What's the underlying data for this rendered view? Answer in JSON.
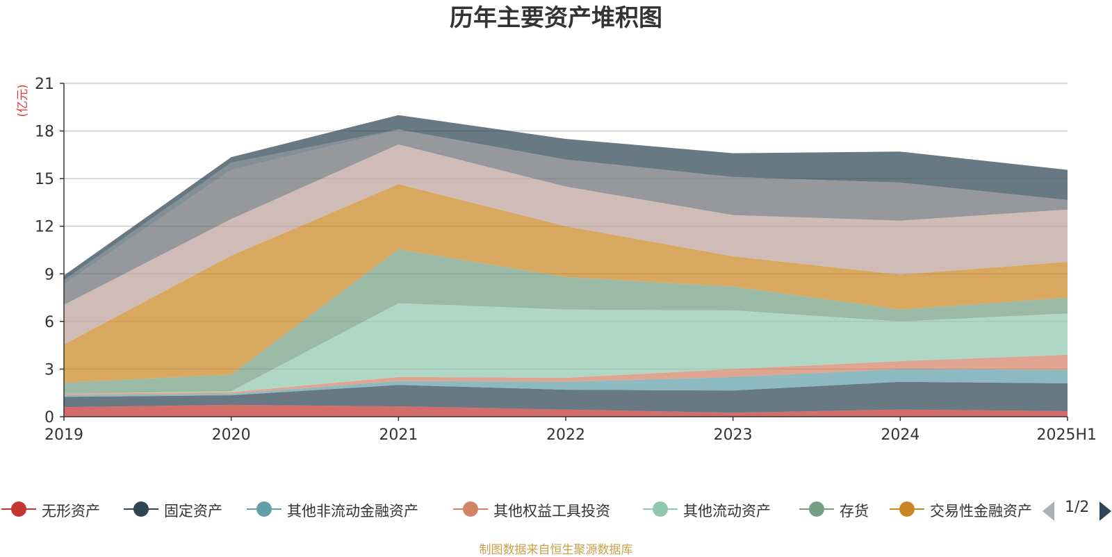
{
  "chart_data": {
    "type": "area",
    "stacked": true,
    "title": "历年主要资产堆积图",
    "ylabel": "(亿元)",
    "xlabel": "",
    "categories": [
      "2019",
      "2020",
      "2021",
      "2022",
      "2023",
      "2024",
      "2025H1"
    ],
    "ylim": [
      0,
      21
    ],
    "yticks": [
      0,
      3,
      6,
      9,
      12,
      15,
      18,
      21
    ],
    "grid": true,
    "legend_position": "bottom",
    "series": [
      {
        "name": "无形资产",
        "color": "#c23531",
        "values": [
          0.6,
          0.75,
          0.65,
          0.45,
          0.25,
          0.45,
          0.35
        ]
      },
      {
        "name": "固定资产",
        "color": "#2f4554",
        "values": [
          0.65,
          0.6,
          1.35,
          1.25,
          1.4,
          1.75,
          1.75
        ]
      },
      {
        "name": "其他非流动金融资产",
        "color": "#61a0a8",
        "values": [
          0.1,
          0.1,
          0.25,
          0.5,
          0.85,
          0.8,
          0.85
        ]
      },
      {
        "name": "其他权益工具投资",
        "color": "#d48265",
        "values": [
          0.1,
          0.1,
          0.25,
          0.25,
          0.5,
          0.5,
          0.95
        ]
      },
      {
        "name": "其他流动资产",
        "color": "#91c7ae",
        "values": [
          0.0,
          0.05,
          4.65,
          4.3,
          3.7,
          2.5,
          2.6
        ]
      },
      {
        "name": "存货",
        "color": "#749f83",
        "values": [
          0.7,
          1.05,
          3.4,
          2.05,
          1.5,
          0.75,
          1.0
        ]
      },
      {
        "name": "交易性金融资产",
        "color": "#ca8622",
        "values": [
          2.4,
          7.5,
          4.1,
          3.2,
          1.9,
          2.2,
          2.25
        ]
      },
      {
        "name": "",
        "color": "#bda29a",
        "values": [
          2.5,
          2.3,
          2.5,
          2.5,
          2.6,
          3.4,
          3.3
        ]
      },
      {
        "name": "",
        "color": "#6e7074",
        "values": [
          1.3,
          3.1,
          0.9,
          1.7,
          2.4,
          2.4,
          0.6
        ]
      },
      {
        "name": "",
        "color": "#546570",
        "values": [
          0.25,
          0.45,
          0.05,
          0.0,
          0.0,
          0.0,
          0.0
        ]
      },
      {
        "name": "",
        "color": "#2f4554",
        "values": [
          0.3,
          0.35,
          0.9,
          1.3,
          1.5,
          1.95,
          1.9
        ]
      }
    ]
  },
  "legend": {
    "visible_count": 7,
    "page_indicator": "1/2"
  },
  "footer": {
    "source": "制图数据来自恒生聚源数据库"
  },
  "colors": {
    "title": "#333333",
    "ylabel": "#e23a3a",
    "source": "#c9a04a",
    "pager_active": "#2f4556",
    "pager_inactive": "#aab0b7"
  }
}
